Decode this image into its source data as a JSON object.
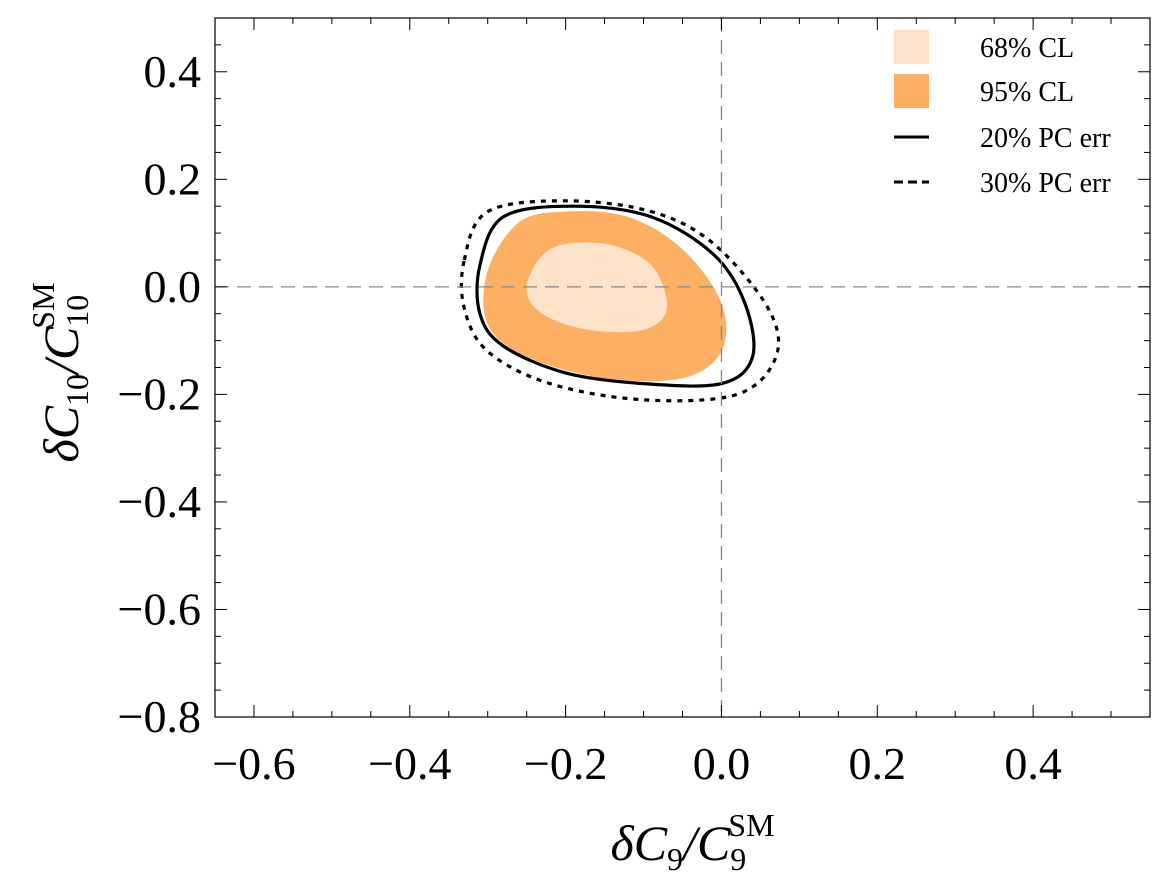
{
  "chart_data": {
    "type": "contour",
    "title": "",
    "xlabel": {
      "prefix": "δC",
      "sub1": "9",
      "mid": "/C",
      "sub2": "9",
      "sup2": "SM"
    },
    "ylabel": {
      "prefix": "δC",
      "sub1": "10",
      "mid": "/C",
      "sub2": "10",
      "sup2": "SM"
    },
    "xlim": [
      -0.65,
      0.55
    ],
    "ylim": [
      -0.8,
      0.5
    ],
    "xticks": [
      -0.6,
      -0.4,
      -0.2,
      0.0,
      0.2,
      0.4
    ],
    "xtick_labels": [
      "−0.6",
      "−0.4",
      "−0.2",
      "0.0",
      "0.2",
      "0.4"
    ],
    "yticks": [
      -0.8,
      -0.6,
      -0.4,
      -0.2,
      0.0,
      0.2,
      0.4
    ],
    "ytick_labels": [
      "−0.8",
      "−0.6",
      "−0.4",
      "−0.2",
      "0.0",
      "0.2",
      "0.4"
    ],
    "reference_lines": {
      "x": 0.0,
      "y": 0.0,
      "style": "dashed",
      "color": "#888888"
    },
    "grid": false,
    "legend_position": "top-right",
    "legend": [
      {
        "label": "68% CL",
        "kind": "fill",
        "color": "#FEE3CA"
      },
      {
        "label": "95% CL",
        "kind": "fill",
        "color": "#FDAF63"
      },
      {
        "label": "20% PC err",
        "kind": "solid-line",
        "color": "#000000"
      },
      {
        "label": "30% PC err",
        "kind": "dashed-line",
        "color": "#000000"
      }
    ],
    "series": [
      {
        "name": "95% CL",
        "kind": "filled-region",
        "color": "#FDAF63",
        "points": [
          [
            -0.3,
            0.03
          ],
          [
            -0.26,
            0.12
          ],
          [
            -0.2,
            0.14
          ],
          [
            -0.12,
            0.13
          ],
          [
            -0.05,
            0.07
          ],
          [
            0.0,
            -0.03
          ],
          [
            0.0,
            -0.12
          ],
          [
            -0.05,
            -0.17
          ],
          [
            -0.15,
            -0.17
          ],
          [
            -0.25,
            -0.13
          ],
          [
            -0.3,
            -0.07
          ]
        ]
      },
      {
        "name": "68% CL",
        "kind": "filled-region",
        "color": "#FEE3CA",
        "points": [
          [
            -0.25,
            0.0
          ],
          [
            -0.22,
            0.07
          ],
          [
            -0.15,
            0.08
          ],
          [
            -0.09,
            0.04
          ],
          [
            -0.07,
            -0.04
          ],
          [
            -0.1,
            -0.08
          ],
          [
            -0.17,
            -0.08
          ],
          [
            -0.23,
            -0.05
          ]
        ]
      },
      {
        "name": "20% PC err",
        "kind": "solid-contour",
        "color": "#000000",
        "points": [
          [
            -0.31,
            0.04
          ],
          [
            -0.28,
            0.13
          ],
          [
            -0.19,
            0.15
          ],
          [
            -0.09,
            0.13
          ],
          [
            -0.01,
            0.06
          ],
          [
            0.03,
            -0.03
          ],
          [
            0.04,
            -0.13
          ],
          [
            0.0,
            -0.18
          ],
          [
            -0.1,
            -0.18
          ],
          [
            -0.2,
            -0.16
          ],
          [
            -0.28,
            -0.11
          ],
          [
            -0.31,
            -0.05
          ]
        ]
      },
      {
        "name": "30% PC err",
        "kind": "dashed-contour",
        "color": "#000000",
        "points": [
          [
            -0.33,
            0.05
          ],
          [
            -0.3,
            0.14
          ],
          [
            -0.2,
            0.16
          ],
          [
            -0.09,
            0.14
          ],
          [
            -0.01,
            0.08
          ],
          [
            0.06,
            -0.04
          ],
          [
            0.07,
            -0.13
          ],
          [
            0.02,
            -0.2
          ],
          [
            -0.1,
            -0.21
          ],
          [
            -0.22,
            -0.18
          ],
          [
            -0.3,
            -0.12
          ],
          [
            -0.33,
            -0.04
          ]
        ]
      }
    ]
  }
}
